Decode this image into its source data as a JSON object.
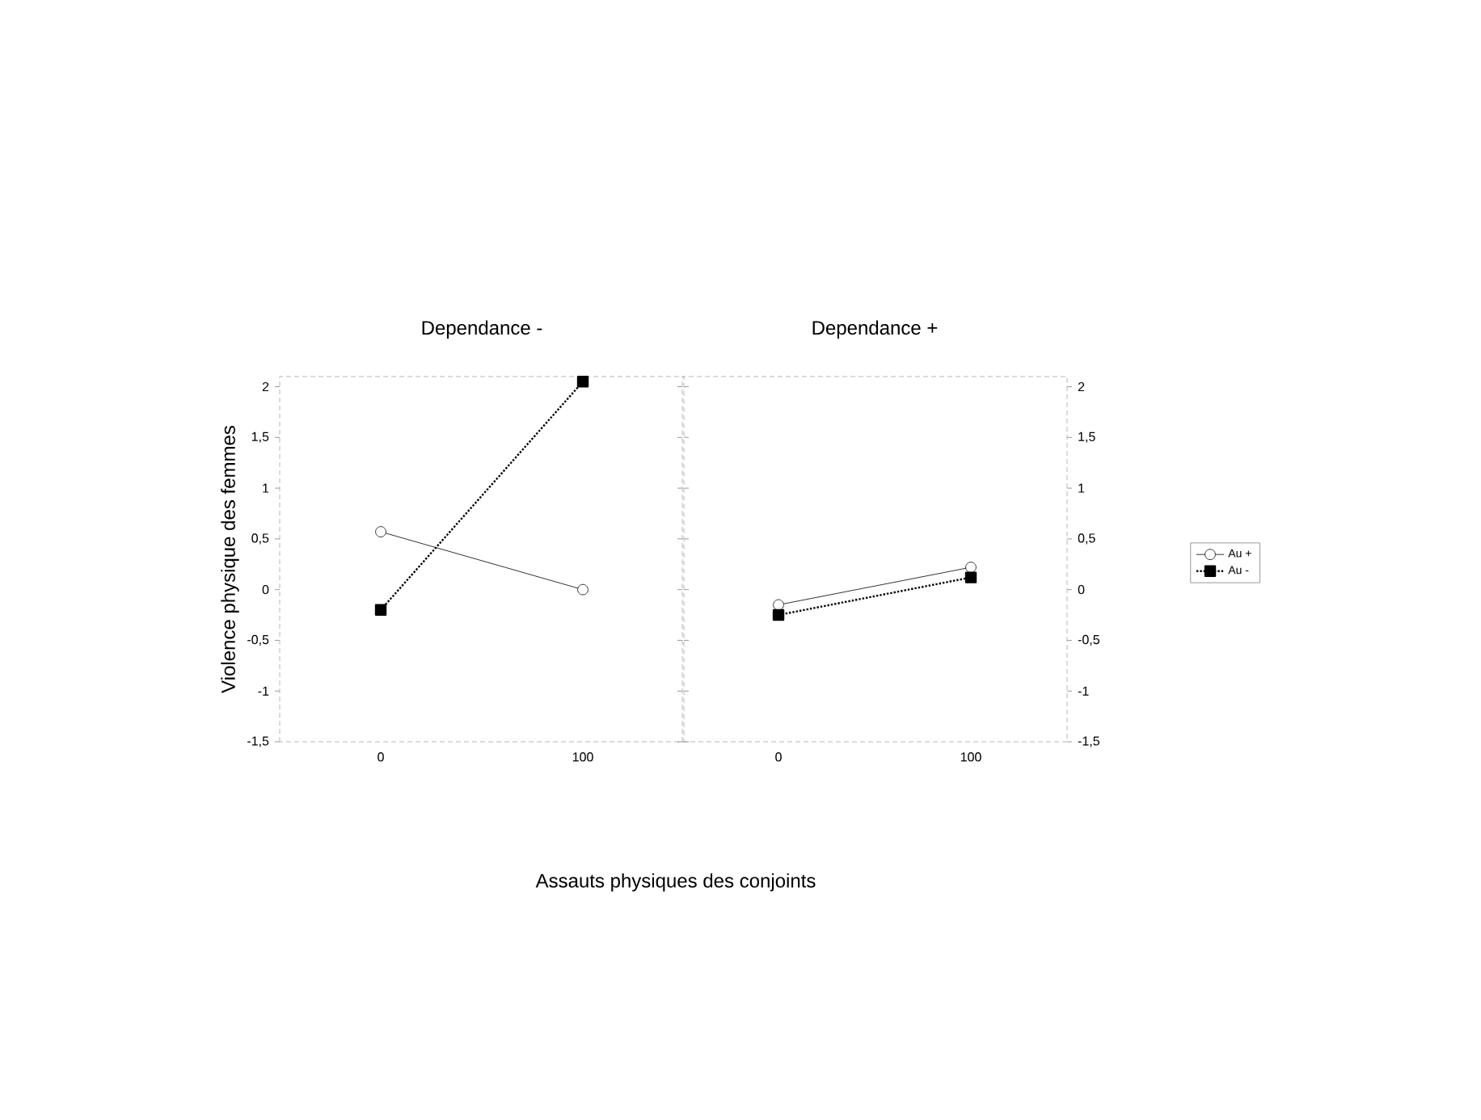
{
  "chart_data": [
    {
      "type": "line",
      "title": "Dependance -",
      "xlabel": "Assauts physiques des conjoints",
      "ylabel": "Violence physique des femmes",
      "categories": [
        "0",
        "100"
      ],
      "series": [
        {
          "color": "#000000",
          "values": [
            0.57,
            0.0
          ],
          "marker": "circle",
          "line_style": "solid"
        },
        {
          "color": "#000000",
          "values": [
            -0.2,
            2.05
          ],
          "marker": "square",
          "line_style": "dotted"
        }
      ],
      "ylim": [
        -1.5,
        2.1
      ],
      "yticks": [
        {
          "value": -1.5,
          "label": "-1,5"
        },
        -1,
        {
          "value": -0.5,
          "label": "-0,5"
        },
        0,
        {
          "value": 0.5,
          "label": "0,5"
        },
        1,
        {
          "value": 1.5,
          "label": "1,5"
        },
        2
      ],
      "grid": false,
      "legend": false
    },
    {
      "type": "line",
      "title": "Dependance +",
      "categories": [
        "0",
        "100"
      ],
      "series": [
        {
          "name": "Au +",
          "color": "#000000",
          "values": [
            -0.15,
            0.22
          ],
          "marker": "circle",
          "line_style": "solid",
          "axis": "y2"
        },
        {
          "name": "Au -",
          "color": "#000000",
          "values": [
            -0.25,
            0.12
          ],
          "marker": "square",
          "line_style": "dotted",
          "axis": "y2"
        }
      ],
      "y2lim": [
        -1.5,
        2.1
      ],
      "y2ticks": [
        {
          "value": -1.5,
          "label": "-1,5"
        },
        -1,
        {
          "value": -0.5,
          "label": "-0,5"
        },
        0,
        {
          "value": 0.5,
          "label": "0,5"
        },
        1,
        {
          "value": 1.5,
          "label": "1,5"
        },
        2
      ],
      "grid": false,
      "legend": "right"
    }
  ]
}
